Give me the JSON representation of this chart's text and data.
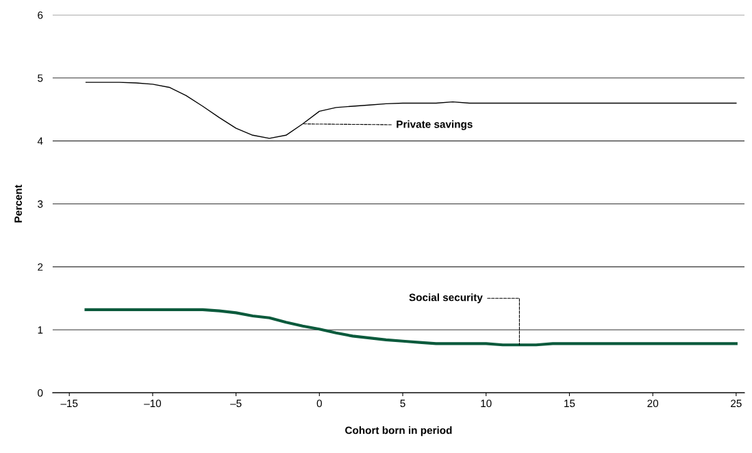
{
  "chart_data": {
    "type": "line",
    "xlabel": "Cohort born in period",
    "ylabel": "Percent",
    "x": [
      -14,
      -13,
      -12,
      -11,
      -10,
      -9,
      -8,
      -7,
      -6,
      -5,
      -4,
      -3,
      -2,
      -1,
      0,
      1,
      2,
      3,
      4,
      5,
      6,
      7,
      8,
      9,
      10,
      11,
      12,
      13,
      14,
      15,
      16,
      17,
      18,
      19,
      20,
      21,
      22,
      23,
      24,
      25
    ],
    "series": [
      {
        "name": "Private savings",
        "color": "#000000",
        "values": [
          4.93,
          4.93,
          4.93,
          4.92,
          4.9,
          4.85,
          4.72,
          4.55,
          4.37,
          4.2,
          4.09,
          4.04,
          4.09,
          4.27,
          4.47,
          4.53,
          4.55,
          4.57,
          4.59,
          4.6,
          4.6,
          4.6,
          4.62,
          4.6,
          4.6,
          4.6,
          4.6,
          4.6,
          4.6,
          4.6,
          4.6,
          4.6,
          4.6,
          4.6,
          4.6,
          4.6,
          4.6,
          4.6,
          4.6,
          4.6
        ]
      },
      {
        "name": "Social security",
        "color": "#0b5a3c",
        "values": [
          1.32,
          1.32,
          1.32,
          1.32,
          1.32,
          1.32,
          1.32,
          1.32,
          1.3,
          1.27,
          1.22,
          1.19,
          1.12,
          1.06,
          1.01,
          0.95,
          0.9,
          0.87,
          0.84,
          0.82,
          0.8,
          0.78,
          0.78,
          0.78,
          0.78,
          0.76,
          0.76,
          0.76,
          0.78,
          0.78,
          0.78,
          0.78,
          0.78,
          0.78,
          0.78,
          0.78,
          0.78,
          0.78,
          0.78,
          0.78
        ]
      }
    ],
    "xlim": [
      -16,
      25.5
    ],
    "ylim": [
      0,
      6
    ],
    "xticks": [
      {
        "value": -15,
        "label": "–15"
      },
      {
        "value": -10,
        "label": "–10"
      },
      {
        "value": -5,
        "label": "–5"
      },
      0,
      5,
      10,
      15,
      20,
      25
    ],
    "yticks": [
      0,
      1,
      2,
      3,
      4,
      5,
      6
    ],
    "grid": "y",
    "legend": false,
    "marker": "none",
    "line_style": "solid"
  }
}
